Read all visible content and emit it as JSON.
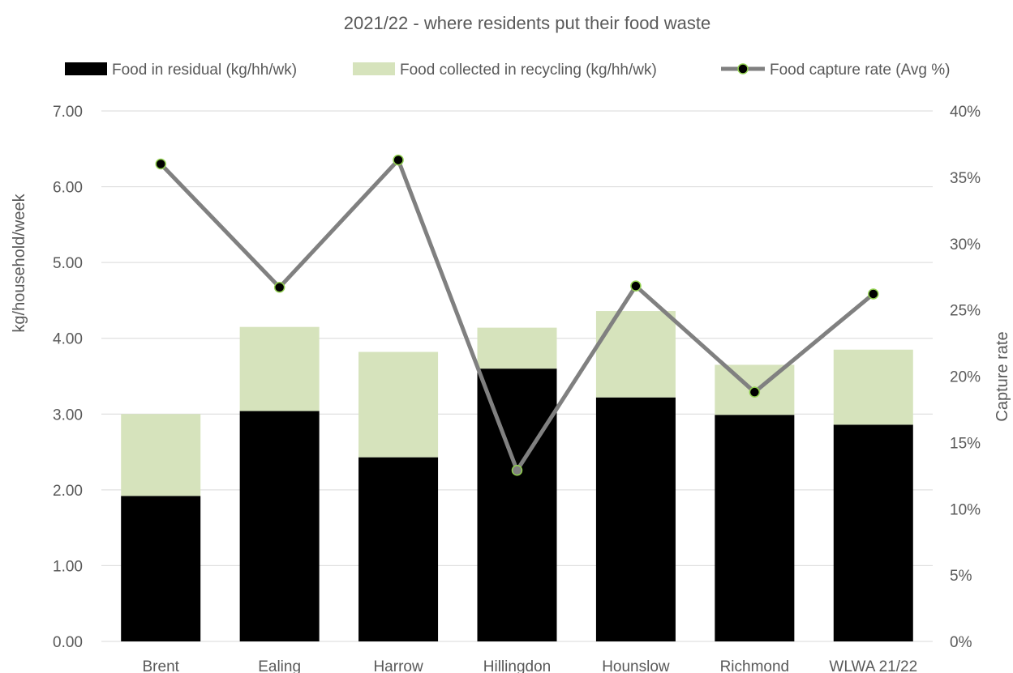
{
  "chart_data": {
    "type": "bar",
    "subtype": "stacked-bar-with-line-secondary-axis",
    "title": "2021/22 - where residents put their food waste",
    "categories": [
      "Brent",
      "Ealing",
      "Harrow",
      "Hillingdon",
      "Hounslow",
      "Richmond",
      "WLWA 21/22"
    ],
    "series": [
      {
        "name": "Food in residual (kg/hh/wk)",
        "kind": "bar",
        "axis": "left",
        "color": "#000000",
        "values": [
          1.92,
          3.04,
          2.43,
          3.6,
          3.22,
          2.99,
          2.86
        ]
      },
      {
        "name": "Food collected in recycling (kg/hh/wk)",
        "kind": "bar",
        "axis": "left",
        "color": "#d6e3bc",
        "values": [
          1.08,
          1.11,
          1.39,
          0.54,
          1.14,
          0.66,
          0.99
        ]
      },
      {
        "name": "Food capture rate (Avg %)",
        "kind": "line",
        "axis": "right",
        "color": "#808080",
        "marker_fill": "#000000",
        "marker_edge": "#92d050",
        "values": [
          36.0,
          26.7,
          36.3,
          12.9,
          26.8,
          18.8,
          26.2
        ]
      }
    ],
    "ylabel": "kg/household/week",
    "y2label": "Capture rate",
    "ylim": [
      0,
      7
    ],
    "y2lim": [
      0,
      40
    ],
    "yticks": [
      "0.00",
      "1.00",
      "2.00",
      "3.00",
      "4.00",
      "5.00",
      "6.00",
      "7.00"
    ],
    "y2ticks": [
      "0%",
      "5%",
      "10%",
      "15%",
      "20%",
      "25%",
      "30%",
      "35%",
      "40%"
    ],
    "grid": true,
    "legend_position": "top"
  }
}
